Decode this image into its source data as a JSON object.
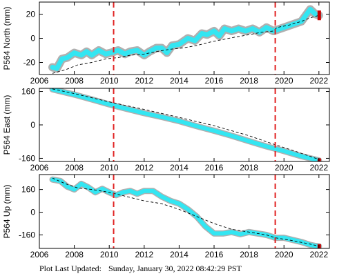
{
  "footer": {
    "label": "Plot Last Updated:",
    "timestamp": "Sunday, January 30, 2022 08:42:29 PST"
  },
  "colors": {
    "data": "#33e6f2",
    "error": "#b0b0b0",
    "model": "#000000",
    "event": "#e02020",
    "recent": "#cc0000"
  },
  "chart_data": [
    {
      "type": "line",
      "ylabel": "P564 North (mm)",
      "xlim": [
        2006,
        2022.6
      ],
      "ylim": [
        -30,
        30
      ],
      "xticks": [
        "2006",
        "2008",
        "2010",
        "2012",
        "2014",
        "2016",
        "2018",
        "2020",
        "2022"
      ],
      "yticks": [
        "20",
        "0",
        "-20"
      ],
      "ytick_values": [
        20,
        0,
        -20
      ],
      "event_lines": [
        2010.25,
        2019.5
      ],
      "series": [
        {
          "role": "observed",
          "x": [
            2006.75,
            2007.0,
            2007.3,
            2007.6,
            2008.0,
            2008.4,
            2008.7,
            2009.0,
            2009.4,
            2009.8,
            2010.1,
            2010.5,
            2010.9,
            2011.2,
            2011.6,
            2012.0,
            2012.3,
            2012.7,
            2013.0,
            2013.3,
            2013.6,
            2014.0,
            2014.3,
            2014.5,
            2014.9,
            2015.3,
            2015.6,
            2016.0,
            2016.3,
            2016.6,
            2017.0,
            2017.4,
            2017.8,
            2018.2,
            2018.6,
            2019.0,
            2019.4,
            2019.8,
            2020.2,
            2020.6,
            2021.0,
            2021.3,
            2021.5,
            2021.8,
            2022.0
          ],
          "y": [
            -24,
            -25,
            -17,
            -16,
            -12,
            -14,
            -11,
            -14,
            -10,
            -13,
            -12,
            -10,
            -13,
            -11,
            -10,
            -14,
            -11,
            -8,
            -8,
            -12,
            -6,
            -5,
            -2,
            0,
            -2,
            4,
            3,
            6,
            2,
            8,
            6,
            8,
            6,
            8,
            5,
            9,
            6,
            8,
            10,
            12,
            14,
            20,
            24,
            20,
            19
          ]
        },
        {
          "role": "model",
          "x": [
            2006.75,
            2007.5,
            2008.2,
            2009.0,
            2009.8,
            2010.5,
            2011.2,
            2012.0,
            2012.7,
            2013.5,
            2014.2,
            2015.0,
            2015.8,
            2016.5,
            2017.2,
            2018.0,
            2018.7,
            2019.4,
            2019.6,
            2020.3,
            2021.0,
            2021.5,
            2022.0
          ],
          "y": [
            -29,
            -26,
            -22,
            -20,
            -17,
            -16,
            -14,
            -13,
            -11,
            -9,
            -8,
            -6,
            -3,
            -1,
            1,
            3,
            5,
            6,
            9,
            11,
            14,
            17,
            19
          ]
        }
      ]
    },
    {
      "type": "line",
      "ylabel": "P564 East (mm)",
      "xlim": [
        2006,
        2022.6
      ],
      "ylim": [
        -175,
        175
      ],
      "xticks": [
        "2006",
        "2008",
        "2010",
        "2012",
        "2014",
        "2016",
        "2018",
        "2020",
        "2022"
      ],
      "yticks": [
        "160",
        "0",
        "-160"
      ],
      "ytick_values": [
        160,
        0,
        -160
      ],
      "event_lines": [
        2010.25,
        2019.5
      ],
      "series": [
        {
          "role": "observed",
          "x": [
            2006.75,
            2008.0,
            2009.0,
            2010.0,
            2011.0,
            2012.0,
            2013.0,
            2014.0,
            2015.0,
            2016.0,
            2017.0,
            2018.0,
            2019.0,
            2020.0,
            2021.0,
            2022.0
          ],
          "y": [
            170,
            145,
            122,
            98,
            77,
            56,
            38,
            18,
            -6,
            -28,
            -52,
            -78,
            -103,
            -125,
            -150,
            -170
          ]
        },
        {
          "role": "model",
          "x": [
            2006.75,
            2008.0,
            2010.0,
            2012.0,
            2014.0,
            2016.0,
            2018.0,
            2019.5,
            2020.5,
            2022.0
          ],
          "y": [
            172,
            150,
            110,
            74,
            36,
            -4,
            -52,
            -95,
            -122,
            -165
          ]
        }
      ]
    },
    {
      "type": "line",
      "ylabel": "P564 Up (mm)",
      "xlim": [
        2006,
        2022.6
      ],
      "ylim": [
        -255,
        265
      ],
      "xticks": [
        "2006",
        "2008",
        "2010",
        "2012",
        "2014",
        "2016",
        "2018",
        "2020",
        "2022"
      ],
      "yticks": [
        "160",
        "0",
        "-160"
      ],
      "ytick_values": [
        160,
        0,
        -160
      ],
      "event_lines": [
        2010.25,
        2019.5
      ],
      "series": [
        {
          "role": "observed",
          "x": [
            2006.75,
            2007.2,
            2007.6,
            2008.0,
            2008.4,
            2008.8,
            2009.2,
            2009.6,
            2010.0,
            2010.4,
            2010.8,
            2011.2,
            2011.6,
            2012.0,
            2012.5,
            2013.0,
            2013.5,
            2014.0,
            2014.5,
            2015.0,
            2015.5,
            2016.0,
            2016.5,
            2017.0,
            2017.5,
            2018.0,
            2018.5,
            2019.0,
            2019.5,
            2020.0,
            2020.5,
            2021.0,
            2021.5,
            2021.8,
            2022.0
          ],
          "y": [
            230,
            220,
            180,
            160,
            200,
            175,
            140,
            165,
            140,
            120,
            140,
            150,
            130,
            150,
            150,
            110,
            80,
            60,
            20,
            -30,
            -100,
            -150,
            -150,
            -140,
            -155,
            -140,
            -150,
            -160,
            -180,
            -180,
            -195,
            -210,
            -230,
            -238,
            -240
          ]
        },
        {
          "role": "model",
          "x": [
            2006.75,
            2007.5,
            2008.2,
            2009.0,
            2010.0,
            2011.0,
            2012.0,
            2013.0,
            2014.0,
            2015.0,
            2016.0,
            2017.0,
            2018.0,
            2019.0,
            2019.5,
            2020.5,
            2021.5,
            2022.0
          ],
          "y": [
            240,
            200,
            170,
            160,
            140,
            110,
            80,
            60,
            20,
            -30,
            -80,
            -120,
            -140,
            -160,
            -180,
            -200,
            -225,
            -240
          ]
        }
      ]
    }
  ]
}
